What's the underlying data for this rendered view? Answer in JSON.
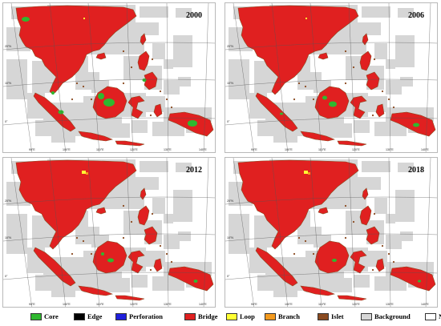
{
  "maps": [
    {
      "year": "2000"
    },
    {
      "year": "2006"
    },
    {
      "year": "2012"
    },
    {
      "year": "2018"
    }
  ],
  "latitude_labels": [
    "20°N",
    "10°N",
    "0°"
  ],
  "longitude_labels": [
    "90°E",
    "100°E",
    "110°E",
    "120°E",
    "130°E",
    "140°E"
  ],
  "legend": [
    {
      "label": "Core",
      "color": "#2fb82f"
    },
    {
      "label": "Edge",
      "color": "#000000"
    },
    {
      "label": "Perforation",
      "color": "#1f1fdc"
    },
    {
      "label": "Bridge",
      "color": "#e02020"
    },
    {
      "label": "Loop",
      "color": "#ffff33"
    },
    {
      "label": "Branch",
      "color": "#f39a1e"
    },
    {
      "label": "Islet",
      "color": "#8a4a20"
    },
    {
      "label": "Background",
      "color": "#d6d6d6"
    },
    {
      "label": "No data",
      "color": "#ffffff"
    }
  ]
}
